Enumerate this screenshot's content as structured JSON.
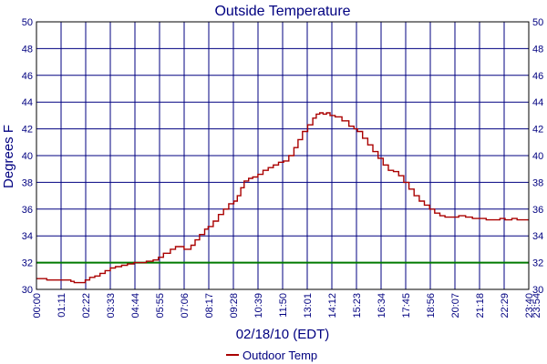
{
  "chart_data": {
    "type": "line",
    "title": "Outside Temperature",
    "xlabel": "02/18/10 (EDT)",
    "ylabel": "Degrees F",
    "x_tick_labels": [
      "00:00",
      "01:11",
      "02:22",
      "03:33",
      "04:44",
      "05:55",
      "07:06",
      "08:17",
      "09:28",
      "10:39",
      "11:50",
      "13:01",
      "14:12",
      "15:23",
      "16:34",
      "17:45",
      "18:56",
      "20:07",
      "21:18",
      "22:29",
      "23:40",
      "23:54"
    ],
    "y_ticks": [
      30,
      32,
      34,
      36,
      38,
      40,
      42,
      44,
      46,
      48,
      50
    ],
    "ylim": [
      30,
      50
    ],
    "x_unit": "minutes since 00:00",
    "xlim": [
      0,
      1434
    ],
    "grid": true,
    "reference_line": {
      "y": 32,
      "color": "#007a00"
    },
    "series": [
      {
        "name": "Outdoor Temp",
        "color": "#aa0000",
        "points": [
          [
            0,
            30.8
          ],
          [
            25,
            30.8
          ],
          [
            30,
            30.7
          ],
          [
            60,
            30.7
          ],
          [
            85,
            30.7
          ],
          [
            100,
            30.6
          ],
          [
            110,
            30.5
          ],
          [
            130,
            30.5
          ],
          [
            142,
            30.7
          ],
          [
            155,
            30.9
          ],
          [
            170,
            31.0
          ],
          [
            185,
            31.2
          ],
          [
            200,
            31.4
          ],
          [
            215,
            31.6
          ],
          [
            230,
            31.7
          ],
          [
            248,
            31.8
          ],
          [
            265,
            31.9
          ],
          [
            284,
            32.0
          ],
          [
            300,
            32.0
          ],
          [
            320,
            32.1
          ],
          [
            340,
            32.2
          ],
          [
            355,
            32.4
          ],
          [
            370,
            32.7
          ],
          [
            390,
            33.0
          ],
          [
            405,
            33.2
          ],
          [
            420,
            33.2
          ],
          [
            430,
            33.0
          ],
          [
            440,
            33.0
          ],
          [
            450,
            33.3
          ],
          [
            462,
            33.7
          ],
          [
            475,
            34.1
          ],
          [
            490,
            34.5
          ],
          [
            500,
            34.7
          ],
          [
            515,
            35.1
          ],
          [
            530,
            35.6
          ],
          [
            545,
            36.0
          ],
          [
            560,
            36.4
          ],
          [
            575,
            36.6
          ],
          [
            585,
            37.0
          ],
          [
            595,
            37.6
          ],
          [
            605,
            38.1
          ],
          [
            618,
            38.3
          ],
          [
            630,
            38.4
          ],
          [
            645,
            38.6
          ],
          [
            660,
            38.9
          ],
          [
            675,
            39.1
          ],
          [
            690,
            39.3
          ],
          [
            705,
            39.5
          ],
          [
            720,
            39.6
          ],
          [
            735,
            40.0
          ],
          [
            750,
            40.6
          ],
          [
            762,
            41.2
          ],
          [
            775,
            41.8
          ],
          [
            790,
            42.3
          ],
          [
            805,
            42.8
          ],
          [
            815,
            43.1
          ],
          [
            825,
            43.2
          ],
          [
            835,
            43.1
          ],
          [
            845,
            43.2
          ],
          [
            855,
            43.0
          ],
          [
            870,
            42.9
          ],
          [
            890,
            42.6
          ],
          [
            910,
            42.2
          ],
          [
            925,
            42.0
          ],
          [
            935,
            41.8
          ],
          [
            950,
            41.3
          ],
          [
            965,
            40.8
          ],
          [
            980,
            40.3
          ],
          [
            995,
            39.8
          ],
          [
            1010,
            39.3
          ],
          [
            1025,
            38.9
          ],
          [
            1040,
            38.8
          ],
          [
            1055,
            38.5
          ],
          [
            1070,
            38.0
          ],
          [
            1085,
            37.5
          ],
          [
            1100,
            37.0
          ],
          [
            1115,
            36.6
          ],
          [
            1130,
            36.3
          ],
          [
            1145,
            36.0
          ],
          [
            1160,
            35.7
          ],
          [
            1175,
            35.5
          ],
          [
            1190,
            35.4
          ],
          [
            1210,
            35.4
          ],
          [
            1230,
            35.5
          ],
          [
            1250,
            35.4
          ],
          [
            1270,
            35.3
          ],
          [
            1290,
            35.3
          ],
          [
            1310,
            35.2
          ],
          [
            1330,
            35.2
          ],
          [
            1350,
            35.3
          ],
          [
            1365,
            35.2
          ],
          [
            1385,
            35.3
          ],
          [
            1400,
            35.2
          ],
          [
            1420,
            35.2
          ],
          [
            1434,
            35.2
          ]
        ]
      }
    ],
    "legend_position": "bottom-center"
  }
}
